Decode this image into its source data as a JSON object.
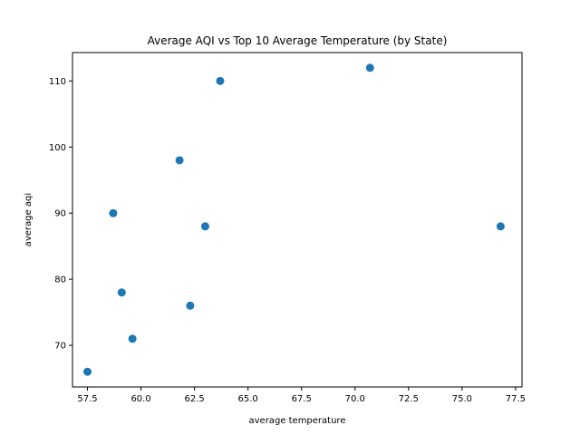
{
  "chart_data": {
    "type": "scatter",
    "title": "Average AQI vs Top 10 Average Temperature (by State)",
    "xlabel": "average temperature",
    "ylabel": "average aqi",
    "xlim": [
      56.8,
      77.8
    ],
    "ylim": [
      63.7,
      114.3
    ],
    "xticks": [
      57.5,
      60.0,
      62.5,
      65.0,
      67.5,
      70.0,
      72.5,
      75.0,
      77.5
    ],
    "xtick_labels": [
      "57.5",
      "60.0",
      "62.5",
      "65.0",
      "67.5",
      "70.0",
      "72.5",
      "75.0",
      "77.5"
    ],
    "yticks": [
      70,
      80,
      90,
      100,
      110
    ],
    "ytick_labels": [
      "70",
      "80",
      "90",
      "100",
      "110"
    ],
    "grid": false,
    "marker_color": "#1f77b4",
    "points": [
      {
        "x": 57.5,
        "y": 66
      },
      {
        "x": 58.7,
        "y": 90
      },
      {
        "x": 59.1,
        "y": 78
      },
      {
        "x": 59.6,
        "y": 71
      },
      {
        "x": 61.8,
        "y": 98
      },
      {
        "x": 62.3,
        "y": 76
      },
      {
        "x": 63.0,
        "y": 88
      },
      {
        "x": 63.7,
        "y": 110
      },
      {
        "x": 70.7,
        "y": 112
      },
      {
        "x": 76.8,
        "y": 88
      }
    ]
  }
}
